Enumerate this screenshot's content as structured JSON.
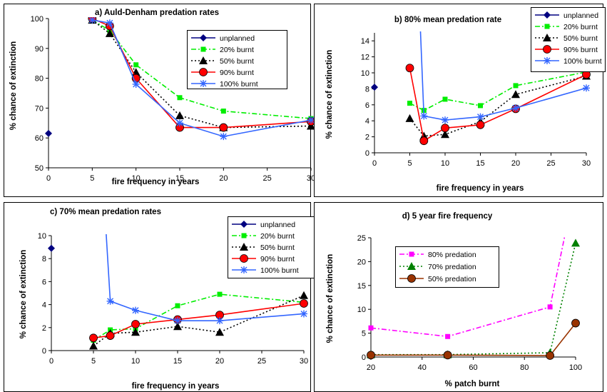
{
  "chart_data": [
    {
      "type": "line",
      "title": "a) Auld-Denham predation rates",
      "xlabel": "fire frequency in years",
      "ylabel": "% chance of extinction",
      "xlim": [
        0,
        30
      ],
      "ylim": [
        50,
        100
      ],
      "xticks": [
        0,
        5,
        10,
        15,
        20,
        25,
        30
      ],
      "yticks": [
        50,
        60,
        70,
        80,
        90,
        100
      ],
      "legend": "top-right, inside plot",
      "series": [
        {
          "name": "unplanned",
          "color": "#000080",
          "marker": "diamond",
          "dash": "solid",
          "x": [
            0
          ],
          "y": [
            61.5
          ]
        },
        {
          "name": "20% burnt",
          "color": "#00ee00",
          "marker": "square",
          "dash": "dashdot",
          "x": [
            5,
            7,
            10,
            15,
            20,
            30
          ],
          "y": [
            99.5,
            96,
            84.5,
            73.5,
            69,
            66.5
          ]
        },
        {
          "name": "50% burnt",
          "color": "#000000",
          "marker": "triangle",
          "dash": "dot",
          "x": [
            5,
            7,
            10,
            15,
            20,
            30
          ],
          "y": [
            99.5,
            95,
            82,
            67.5,
            63.5,
            64
          ]
        },
        {
          "name": "90% burnt",
          "color": "#ff0000",
          "marker": "circle",
          "dash": "solid",
          "x": [
            5,
            7,
            10,
            15,
            20,
            30
          ],
          "y": [
            100,
            97.5,
            80,
            63.5,
            63.5,
            65.5
          ]
        },
        {
          "name": "100% burnt",
          "color": "#3366ff",
          "marker": "star",
          "dash": "solid",
          "x": [
            5,
            7,
            10,
            15,
            20,
            30
          ],
          "y": [
            99.5,
            98.5,
            78,
            65,
            60.5,
            66
          ]
        }
      ]
    },
    {
      "type": "line",
      "title": "b) 80% mean predation rate",
      "xlabel": "fire frequency in years",
      "ylabel": "% chance of extinction",
      "xlim": [
        0,
        30
      ],
      "ylim": [
        0,
        15
      ],
      "xticks": [
        0,
        5,
        10,
        15,
        20,
        25,
        30
      ],
      "yticks": [
        0,
        2,
        4,
        6,
        8,
        10,
        12,
        14
      ],
      "legend": "top-right, outside plot",
      "series": [
        {
          "name": "unplanned",
          "color": "#000080",
          "marker": "diamond",
          "dash": "solid",
          "x": [
            0
          ],
          "y": [
            8.2
          ]
        },
        {
          "name": "20% burnt",
          "color": "#00ee00",
          "marker": "square",
          "dash": "dashdot",
          "x": [
            5,
            7,
            10,
            15,
            20,
            30
          ],
          "y": [
            6.2,
            5.3,
            6.7,
            5.9,
            8.4,
            10.1
          ]
        },
        {
          "name": "50% burnt",
          "color": "#000000",
          "marker": "triangle",
          "dash": "dot",
          "x": [
            5,
            7,
            10,
            15,
            20,
            30
          ],
          "y": [
            4.3,
            2.1,
            2.3,
            3.9,
            7.3,
            9.6
          ]
        },
        {
          "name": "90% burnt",
          "color": "#ff0000",
          "marker": "circle",
          "dash": "solid",
          "x": [
            5,
            7,
            10,
            15,
            20,
            30
          ],
          "y": [
            10.6,
            1.5,
            3.1,
            3.5,
            5.5,
            9.8
          ]
        },
        {
          "name": "100% burnt",
          "color": "#3366ff",
          "marker": "star",
          "dash": "solid",
          "x": [
            6.5,
            7,
            10,
            15,
            20,
            30
          ],
          "y": [
            15.5,
            4.6,
            4.1,
            4.5,
            5.6,
            8.1
          ],
          "first_point_marker": false
        }
      ]
    },
    {
      "type": "line",
      "title": "c) 70% mean predation rates",
      "xlabel": "fire frequency in years",
      "ylabel": "% chance of extinction",
      "xlim": [
        0,
        30
      ],
      "ylim": [
        0,
        10
      ],
      "xticks": [
        0,
        5,
        10,
        15,
        20,
        25,
        30
      ],
      "yticks": [
        0,
        2,
        4,
        6,
        8,
        10
      ],
      "legend": "top-right, inside plot",
      "series": [
        {
          "name": "unplanned",
          "color": "#000080",
          "marker": "diamond",
          "dash": "solid",
          "x": [
            0
          ],
          "y": [
            8.9
          ]
        },
        {
          "name": "20% burnt",
          "color": "#00ee00",
          "marker": "square",
          "dash": "dashdot",
          "x": [
            5,
            7,
            10,
            15,
            20,
            30
          ],
          "y": [
            0.9,
            1.8,
            1.9,
            3.9,
            4.9,
            4.2
          ]
        },
        {
          "name": "50% burnt",
          "color": "#000000",
          "marker": "triangle",
          "dash": "dot",
          "x": [
            5,
            7,
            10,
            15,
            20,
            30
          ],
          "y": [
            0.4,
            1.5,
            1.6,
            2.1,
            1.6,
            4.8
          ]
        },
        {
          "name": "90% burnt",
          "color": "#ff0000",
          "marker": "circle",
          "dash": "solid",
          "x": [
            5,
            7,
            10,
            15,
            20,
            30
          ],
          "y": [
            1.1,
            1.3,
            2.3,
            2.7,
            3.1,
            4.1
          ]
        },
        {
          "name": "100% burnt",
          "color": "#3366ff",
          "marker": "star",
          "dash": "solid",
          "x": [
            6.5,
            7,
            10,
            15,
            20,
            30
          ],
          "y": [
            10.3,
            4.3,
            3.5,
            2.6,
            2.6,
            3.2
          ],
          "first_point_marker": false
        }
      ]
    },
    {
      "type": "line",
      "title": "d) 5 year fire frequency",
      "xlabel": "% patch burnt",
      "ylabel": "% chance of extinction",
      "xlim": [
        20,
        100
      ],
      "ylim": [
        0,
        25
      ],
      "xticks": [
        20,
        40,
        60,
        80,
        100
      ],
      "yticks": [
        0,
        5,
        10,
        15,
        20,
        25
      ],
      "legend": "top-left, inside plot",
      "series": [
        {
          "name": "80% predation",
          "color": "#ff00ff",
          "marker": "square",
          "dash": "dashdot",
          "x": [
            20,
            50,
            90,
            96
          ],
          "y": [
            6.1,
            4.3,
            10.5,
            26
          ],
          "last_point_marker": false
        },
        {
          "name": "70% predation",
          "color": "#008000",
          "marker": "triangle",
          "dash": "dot",
          "x": [
            20,
            50,
            90,
            100
          ],
          "y": [
            0.5,
            0.5,
            0.9,
            23.9
          ]
        },
        {
          "name": "50% predation",
          "color": "#993300",
          "marker": "circle",
          "dash": "solid",
          "x": [
            20,
            50,
            90,
            100
          ],
          "y": [
            0.4,
            0.4,
            0.3,
            7.1
          ]
        }
      ]
    }
  ]
}
